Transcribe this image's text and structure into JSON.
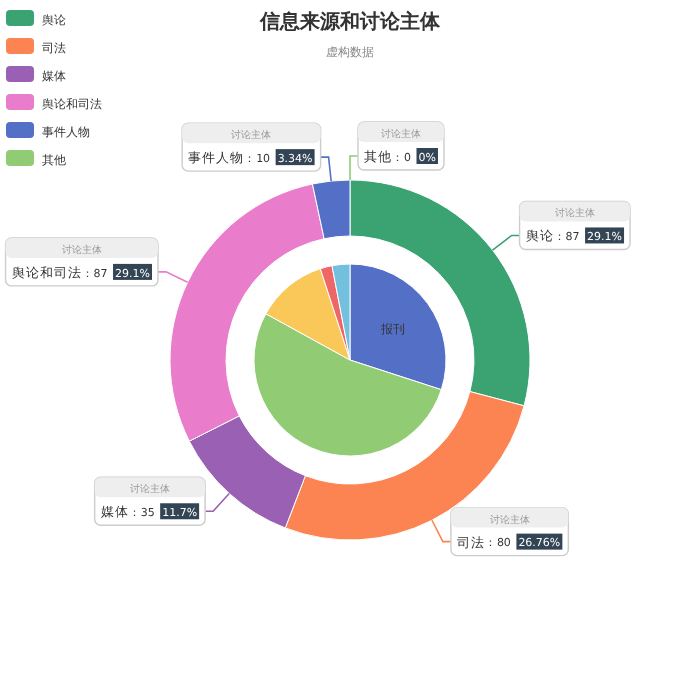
{
  "chart_data": [
    {
      "type": "donut",
      "title": "信息来源和讨论主体",
      "subtitle": "虚构数据",
      "legend": "top left",
      "annotations": [
        "讨论主体"
      ],
      "data_labels": true,
      "categories": [
        "舆论",
        "司法",
        "媒体",
        "舆论和司法",
        "事件人物",
        "其他"
      ],
      "values": [
        87,
        80,
        35,
        87,
        10,
        0
      ],
      "value_labels": [
        "：87 29.1%",
        "：80 26.76%",
        "：35 11.7%",
        "：87 29.1%",
        "：10 3.34%",
        "：0 0%"
      ],
      "colors": [
        "#3ba272",
        "#fc8452",
        "#9a60b4",
        "#ea7ccc",
        "#5470c6",
        "#91cc75"
      ]
    },
    {
      "type": "pie",
      "categories": [
        "报刊",
        null,
        null,
        null,
        null
      ],
      "values": [
        30,
        53,
        12,
        2,
        3
      ],
      "colors": [
        "#5470c6",
        "#91cc75",
        "#fac858",
        "#ee6666",
        "#73c0de"
      ]
    }
  ]
}
